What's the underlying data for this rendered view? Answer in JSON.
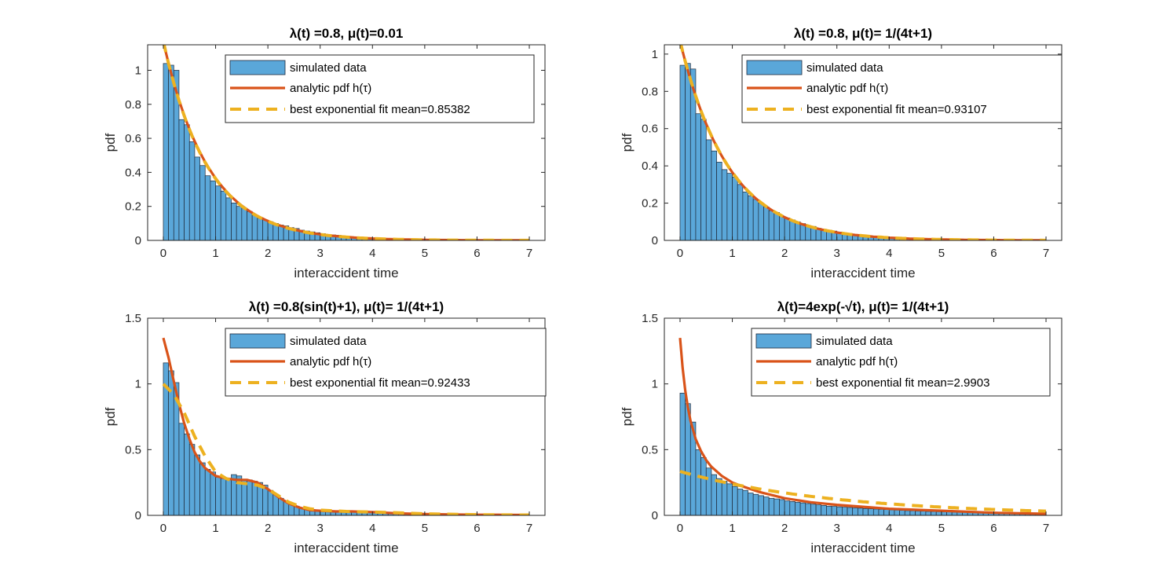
{
  "chart_data": [
    {
      "type": "bar",
      "title": "λ(t) =0.8,  μ(t)=0.01",
      "xlabel": "interaccident time",
      "ylabel": "pdf",
      "xlim": [
        -0.3,
        7.3
      ],
      "ylim": [
        0,
        1.15
      ],
      "xticks": [
        "0",
        "1",
        "2",
        "3",
        "4",
        "5",
        "6",
        "7"
      ],
      "yticks": [
        {
          "v": 0,
          "label": "0"
        },
        {
          "v": 0.2,
          "label": "0.2"
        },
        {
          "v": 0.4,
          "label": "0.4"
        },
        {
          "v": 0.6,
          "label": "0.6"
        },
        {
          "v": 0.8,
          "label": "0.8"
        },
        {
          "v": 1,
          "label": "1"
        }
      ],
      "hist": {
        "name": "simulated data",
        "binwidth": 0.1,
        "density": [
          1.04,
          1.03,
          1.0,
          0.71,
          0.68,
          0.58,
          0.49,
          0.44,
          0.38,
          0.35,
          0.32,
          0.29,
          0.25,
          0.22,
          0.2,
          0.19,
          0.17,
          0.15,
          0.13,
          0.12,
          0.11,
          0.1,
          0.09,
          0.085,
          0.075,
          0.07,
          0.06,
          0.055,
          0.05,
          0.045,
          0.04,
          0.035,
          0.032,
          0.03,
          0.026,
          0.023,
          0.02,
          0.018,
          0.016,
          0.014,
          0.013,
          0.011,
          0.01,
          0.009,
          0.008,
          0.007,
          0.006,
          0.006,
          0.005,
          0.004,
          0.004,
          0.003,
          0.003,
          0.003,
          0.002,
          0.002,
          0.002,
          0.002,
          0.001,
          0.001,
          0.001,
          0.001,
          0.001,
          0.001,
          0.001,
          0.001,
          0.001,
          0.001,
          0.001,
          0.001
        ]
      },
      "curves": [
        {
          "name": "analytic pdf h(τ)",
          "kind": "exp",
          "mean": 0.86,
          "amp": 1.17
        },
        {
          "name": "best exponential fit mean=0.85382",
          "kind": "exp",
          "mean": 0.85382,
          "amp": 1.17
        }
      ]
    },
    {
      "type": "bar",
      "title": "λ(t) =0.8,  μ(t)= 1/(4t+1)",
      "xlabel": "interaccident time",
      "ylabel": "pdf",
      "xlim": [
        -0.3,
        7.3
      ],
      "ylim": [
        0,
        1.05
      ],
      "xticks": [
        "0",
        "1",
        "2",
        "3",
        "4",
        "5",
        "6",
        "7"
      ],
      "yticks": [
        {
          "v": 0,
          "label": "0"
        },
        {
          "v": 0.2,
          "label": "0.2"
        },
        {
          "v": 0.4,
          "label": "0.4"
        },
        {
          "v": 0.6,
          "label": "0.6"
        },
        {
          "v": 0.8,
          "label": "0.8"
        },
        {
          "v": 1,
          "label": "1"
        }
      ],
      "hist": {
        "name": "simulated data",
        "binwidth": 0.1,
        "density": [
          0.94,
          0.95,
          0.92,
          0.68,
          0.65,
          0.54,
          0.48,
          0.42,
          0.38,
          0.36,
          0.34,
          0.3,
          0.26,
          0.24,
          0.22,
          0.2,
          0.18,
          0.16,
          0.15,
          0.13,
          0.12,
          0.11,
          0.1,
          0.09,
          0.08,
          0.075,
          0.065,
          0.06,
          0.055,
          0.05,
          0.045,
          0.04,
          0.035,
          0.032,
          0.028,
          0.025,
          0.022,
          0.02,
          0.018,
          0.016,
          0.014,
          0.012,
          0.011,
          0.01,
          0.009,
          0.008,
          0.007,
          0.006,
          0.006,
          0.005,
          0.004,
          0.004,
          0.003,
          0.003,
          0.003,
          0.002,
          0.002,
          0.002,
          0.002,
          0.001,
          0.001,
          0.001,
          0.001,
          0.001,
          0.001,
          0.001,
          0.001,
          0.001,
          0.001,
          0.001
        ]
      },
      "curves": [
        {
          "name": "analytic pdf h(τ)",
          "kind": "exp",
          "mean": 0.93,
          "amp": 1.07
        },
        {
          "name": "best exponential fit mean=0.93107",
          "kind": "exp",
          "mean": 0.93107,
          "amp": 1.07
        }
      ]
    },
    {
      "type": "bar",
      "title": "λ(t) =0.8(sin(t)+1),  μ(t)= 1/(4t+1)",
      "xlabel": "interaccident time",
      "ylabel": "pdf",
      "xlim": [
        -0.3,
        7.3
      ],
      "ylim": [
        0,
        1.5
      ],
      "xticks": [
        "0",
        "1",
        "2",
        "3",
        "4",
        "5",
        "6",
        "7"
      ],
      "yticks": [
        {
          "v": 0,
          "label": "0"
        },
        {
          "v": 0.5,
          "label": "0.5"
        },
        {
          "v": 1,
          "label": "1"
        },
        {
          "v": 1.5,
          "label": "1.5"
        }
      ],
      "hist": {
        "name": "simulated data",
        "binwidth": 0.1,
        "density": [
          1.16,
          1.1,
          1.01,
          0.7,
          0.62,
          0.54,
          0.46,
          0.4,
          0.35,
          0.33,
          0.29,
          0.28,
          0.27,
          0.31,
          0.3,
          0.27,
          0.27,
          0.26,
          0.25,
          0.23,
          0.19,
          0.16,
          0.13,
          0.11,
          0.09,
          0.07,
          0.06,
          0.05,
          0.045,
          0.04,
          0.035,
          0.035,
          0.03,
          0.03,
          0.03,
          0.03,
          0.028,
          0.026,
          0.024,
          0.022,
          0.02,
          0.018,
          0.015,
          0.012,
          0.01,
          0.009,
          0.008,
          0.007,
          0.006,
          0.005,
          0.005,
          0.004,
          0.004,
          0.004,
          0.003,
          0.003,
          0.003,
          0.003,
          0.003,
          0.003,
          0.003,
          0.003,
          0.003,
          0.002,
          0.002,
          0.002,
          0.002,
          0.002,
          0.002,
          0.002
        ]
      },
      "curves": [
        {
          "name": "analytic pdf h(τ)",
          "kind": "points",
          "x": [
            0,
            0.1,
            0.2,
            0.3,
            0.4,
            0.5,
            0.6,
            0.7,
            0.8,
            0.9,
            1.0,
            1.2,
            1.4,
            1.6,
            1.8,
            2.0,
            2.2,
            2.4,
            2.6,
            2.8,
            3.0,
            3.3,
            3.6,
            4.0,
            4.5,
            5.0,
            5.5,
            6.0,
            6.5,
            7.0
          ],
          "y": [
            1.35,
            1.2,
            1.02,
            0.85,
            0.7,
            0.58,
            0.48,
            0.41,
            0.36,
            0.33,
            0.3,
            0.28,
            0.27,
            0.27,
            0.25,
            0.2,
            0.14,
            0.09,
            0.06,
            0.04,
            0.035,
            0.03,
            0.03,
            0.025,
            0.015,
            0.01,
            0.007,
            0.005,
            0.004,
            0.003
          ]
        },
        {
          "name": "best exponential fit mean=0.92433",
          "kind": "points",
          "x": [
            0,
            0.2,
            0.4,
            0.6,
            0.8,
            1.0,
            1.2,
            1.4,
            1.6,
            1.8,
            2.0,
            2.2,
            2.4,
            2.6,
            2.8,
            3.0,
            3.5,
            4.0,
            4.5,
            5.0,
            6.0,
            7.0
          ],
          "y": [
            1.0,
            0.92,
            0.78,
            0.6,
            0.45,
            0.33,
            0.28,
            0.25,
            0.24,
            0.23,
            0.2,
            0.15,
            0.1,
            0.07,
            0.05,
            0.04,
            0.03,
            0.025,
            0.02,
            0.012,
            0.005,
            0.003
          ]
        }
      ]
    },
    {
      "type": "bar",
      "title": "λ(t)=4exp(-√t),  μ(t)= 1/(4t+1)",
      "xlabel": "interaccident time",
      "ylabel": "pdf",
      "xlim": [
        -0.3,
        7.3
      ],
      "ylim": [
        0,
        1.5
      ],
      "xticks": [
        "0",
        "1",
        "2",
        "3",
        "4",
        "5",
        "6",
        "7"
      ],
      "yticks": [
        {
          "v": 0,
          "label": "0"
        },
        {
          "v": 0.5,
          "label": "0.5"
        },
        {
          "v": 1,
          "label": "1"
        },
        {
          "v": 1.5,
          "label": "1.5"
        }
      ],
      "hist": {
        "name": "simulated data",
        "binwidth": 0.1,
        "density": [
          0.93,
          0.85,
          0.71,
          0.5,
          0.44,
          0.36,
          0.31,
          0.28,
          0.26,
          0.24,
          0.22,
          0.2,
          0.19,
          0.17,
          0.16,
          0.15,
          0.14,
          0.13,
          0.125,
          0.12,
          0.11,
          0.105,
          0.1,
          0.095,
          0.09,
          0.085,
          0.08,
          0.075,
          0.07,
          0.068,
          0.065,
          0.062,
          0.06,
          0.057,
          0.055,
          0.052,
          0.05,
          0.048,
          0.046,
          0.044,
          0.042,
          0.04,
          0.038,
          0.036,
          0.035,
          0.033,
          0.032,
          0.03,
          0.029,
          0.028,
          0.027,
          0.026,
          0.025,
          0.024,
          0.023,
          0.022,
          0.021,
          0.02,
          0.019,
          0.018,
          0.017,
          0.016,
          0.016,
          0.015,
          0.015,
          0.014,
          0.014,
          0.013,
          0.013,
          0.012
        ]
      },
      "curves": [
        {
          "name": "analytic pdf h(τ)",
          "kind": "points",
          "x": [
            0,
            0.05,
            0.1,
            0.15,
            0.2,
            0.3,
            0.4,
            0.5,
            0.6,
            0.8,
            1.0,
            1.2,
            1.5,
            2.0,
            2.5,
            3.0,
            3.5,
            4.0,
            5.0,
            6.0,
            7.0
          ],
          "y": [
            1.35,
            1.12,
            0.95,
            0.82,
            0.72,
            0.58,
            0.49,
            0.42,
            0.37,
            0.3,
            0.25,
            0.22,
            0.18,
            0.13,
            0.1,
            0.08,
            0.065,
            0.05,
            0.035,
            0.02,
            0.012
          ]
        },
        {
          "name": "best exponential fit mean=2.9903",
          "kind": "exp",
          "mean": 2.9903,
          "amp": 0.334
        }
      ]
    }
  ],
  "legend_colors": {
    "hist_fill": "#4dbeee",
    "hist_face": "#5aa7d9",
    "hist_edge": "#1f2a3a",
    "analytic": "#d95319",
    "fit": "#edb120"
  }
}
